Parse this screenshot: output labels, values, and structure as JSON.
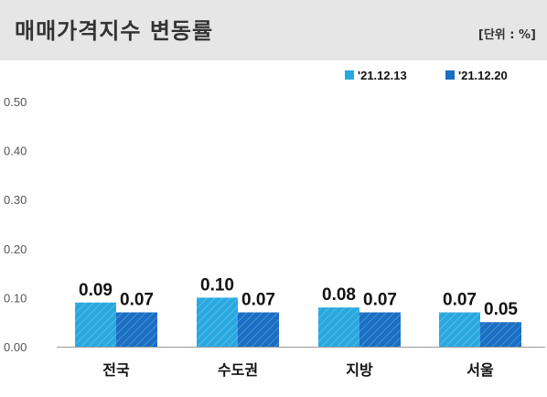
{
  "header": {
    "title": "매매가격지수 변동률",
    "unit": "[단위 : %]"
  },
  "chart_data": {
    "type": "bar",
    "categories": [
      "전국",
      "수도권",
      "지방",
      "서울"
    ],
    "series": [
      {
        "name": "'21.12.13",
        "values": [
          0.09,
          0.1,
          0.08,
          0.07
        ],
        "color": "#29a8e0"
      },
      {
        "name": "'21.12.20",
        "values": [
          0.07,
          0.07,
          0.07,
          0.05
        ],
        "color": "#1a6fc4"
      }
    ],
    "data_labels": [
      [
        "0.09",
        "0.10",
        "0.08",
        "0.07"
      ],
      [
        "0.07",
        "0.07",
        "0.07",
        "0.05"
      ]
    ],
    "ylim": [
      0,
      0.5
    ],
    "yticks": [
      "0.00",
      "0.10",
      "0.20",
      "0.30",
      "0.40",
      "0.50"
    ],
    "grid": false,
    "legend_position": "top-right",
    "bar_pattern": "diagonal-stripes"
  }
}
